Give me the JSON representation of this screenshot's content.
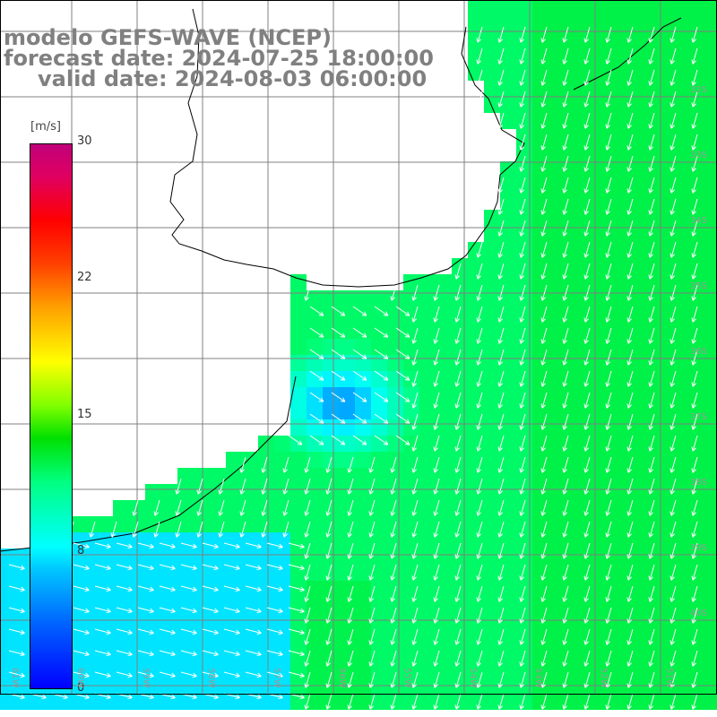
{
  "header": {
    "model": "modelo GEFS-WAVE (NCEP)",
    "forecast": "forecast date: 2024-07-25 18:00:00",
    "valid": "valid date: 2024-08-03 06:00:00"
  },
  "colorbar": {
    "unit": "[m/s]",
    "ticks": [
      "30",
      "22",
      "15",
      "8",
      "0"
    ],
    "colors": [
      "#0000ff",
      "#00c8ff",
      "#00ffff",
      "#00e000",
      "#ffff00",
      "#ff0000",
      "#c0007a"
    ]
  },
  "map": {
    "lon_range": [
      -61,
      -50
    ],
    "lat_range": [
      -42,
      -32
    ],
    "lat_labels": [
      "32S",
      "33S",
      "34S",
      "35S",
      "36S",
      "37S",
      "38S",
      "39S",
      "40S"
    ],
    "lon_labels": [
      "61W",
      "60W",
      "59W",
      "58W",
      "57W",
      "56W",
      "55W",
      "54W",
      "53W",
      "52W",
      "51W"
    ],
    "arrow_color": "#ffffff",
    "coast_color": "#000000",
    "grid_color": "#808080"
  }
}
